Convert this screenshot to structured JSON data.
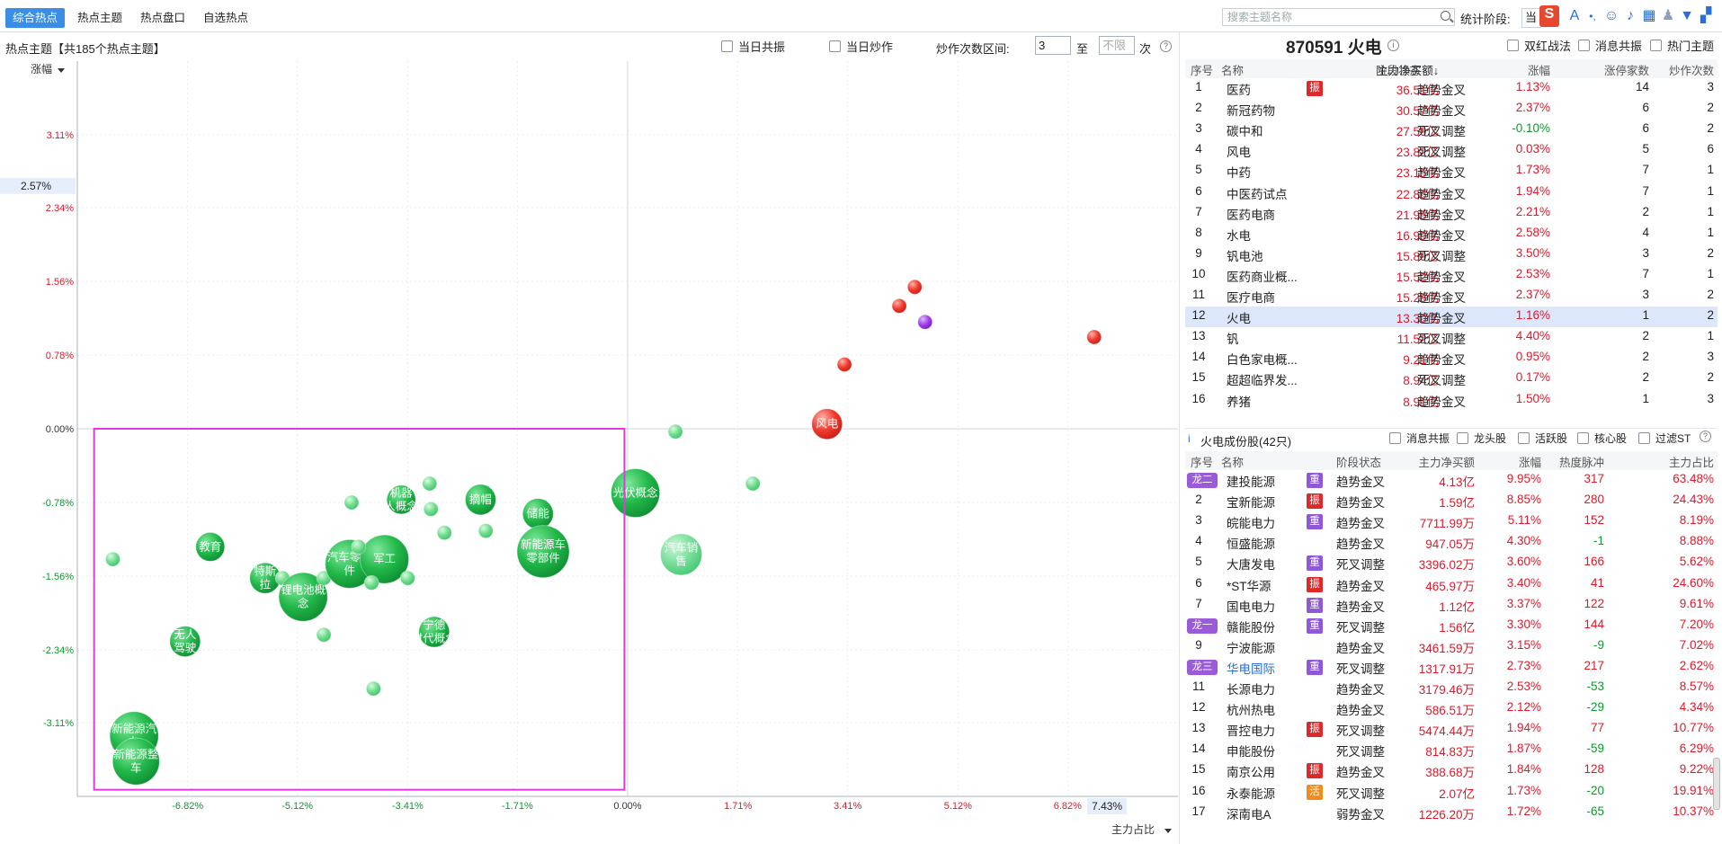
{
  "toolbar": {
    "tabs": [
      "综合热点",
      "热点主题",
      "热点盘口",
      "自选热点"
    ],
    "search_placeholder": "搜索主题名称",
    "stat_label": "统计阶段:",
    "stat_value": "当",
    "sogou": "S"
  },
  "left": {
    "header": "热点主题【共185个热点主题】",
    "cb_resonance": "当日共振",
    "cb_speculation": "当日炒作",
    "range_label": "炒作次数区间:",
    "range_from": "3",
    "range_to_label": "至",
    "range_to_placeholder": "不限",
    "range_unit": "次"
  },
  "chart_data": {
    "type": "scatter",
    "ylabel": "涨幅",
    "xlabel": "主力占比",
    "ylim": [
      -3.89,
      3.89
    ],
    "xlim": [
      -8.53,
      8.53
    ],
    "y_ticks": [
      "3.11%",
      "2.34%",
      "1.56%",
      "0.78%",
      "0.00%",
      "-0.78%",
      "-1.56%",
      "-2.34%",
      "-3.11%"
    ],
    "y_tick_values": [
      3.11,
      2.34,
      1.56,
      0.78,
      0,
      -0.78,
      -1.56,
      -2.34,
      -3.11
    ],
    "x_ticks": [
      "-6.82%",
      "-5.12%",
      "-3.41%",
      "-1.71%",
      "0.00%",
      "1.71%",
      "3.41%",
      "5.12%",
      "6.82%"
    ],
    "x_tick_values": [
      -6.82,
      -5.12,
      -3.41,
      -1.71,
      0,
      1.71,
      3.41,
      5.12,
      6.82
    ],
    "y_cursor": "2.57%",
    "x_cursor": "7.43%",
    "grid": true,
    "selection_color": "#e437e4",
    "selection": {
      "x": [
        -8.27,
        -0.05
      ],
      "y": [
        -3.82,
        0.0
      ]
    },
    "points": [
      {
        "x": -7.98,
        "y": -1.38,
        "r": 8,
        "label": "",
        "color": "light"
      },
      {
        "x": -6.47,
        "y": -1.25,
        "r": 16,
        "label": "教育",
        "color": "green"
      },
      {
        "x": -6.86,
        "y": -2.25,
        "r": 17,
        "label": "无人驾驶",
        "color": "green"
      },
      {
        "x": -7.65,
        "y": -3.25,
        "r": 27,
        "label": "新能源汽车",
        "color": "green"
      },
      {
        "x": -7.62,
        "y": -3.52,
        "r": 26,
        "label": "新能源整车",
        "color": "green"
      },
      {
        "x": -5.62,
        "y": -1.58,
        "r": 17,
        "label": "特斯拉",
        "color": "green"
      },
      {
        "x": -5.35,
        "y": -1.58,
        "r": 8,
        "label": "",
        "color": "light"
      },
      {
        "x": -5.03,
        "y": -1.78,
        "r": 27,
        "label": "锂电池概念",
        "color": "green"
      },
      {
        "x": -4.71,
        "y": -2.18,
        "r": 8,
        "label": "",
        "color": "light"
      },
      {
        "x": -4.71,
        "y": -1.58,
        "r": 8,
        "label": "",
        "color": "light"
      },
      {
        "x": -4.31,
        "y": -1.43,
        "r": 27,
        "label": "汽车零部件",
        "color": "green"
      },
      {
        "x": -3.77,
        "y": -1.38,
        "r": 27,
        "label": "军工",
        "color": "green"
      },
      {
        "x": -4.28,
        "y": -0.78,
        "r": 8,
        "label": "",
        "color": "light"
      },
      {
        "x": -4.17,
        "y": -1.25,
        "r": 8,
        "label": "",
        "color": "light"
      },
      {
        "x": -3.97,
        "y": -1.63,
        "r": 8,
        "label": "",
        "color": "light"
      },
      {
        "x": -3.94,
        "y": -2.75,
        "r": 8,
        "label": "",
        "color": "light"
      },
      {
        "x": -3.51,
        "y": -0.75,
        "r": 16,
        "label": "机器人概念",
        "color": "green"
      },
      {
        "x": -3.41,
        "y": -1.58,
        "r": 8,
        "label": "",
        "color": "light"
      },
      {
        "x": -3.07,
        "y": -0.58,
        "r": 8,
        "label": "",
        "color": "light"
      },
      {
        "x": -3.05,
        "y": -0.85,
        "r": 8,
        "label": "",
        "color": "light"
      },
      {
        "x": -2.84,
        "y": -1.1,
        "r": 8,
        "label": "",
        "color": "light"
      },
      {
        "x": -3.0,
        "y": -2.15,
        "r": 17,
        "label": "宁德时代概念",
        "color": "green"
      },
      {
        "x": -2.28,
        "y": -0.75,
        "r": 17,
        "label": "摘帽",
        "color": "green"
      },
      {
        "x": -2.2,
        "y": -1.08,
        "r": 8,
        "label": "",
        "color": "light"
      },
      {
        "x": -1.39,
        "y": -0.9,
        "r": 17,
        "label": "储能",
        "color": "green"
      },
      {
        "x": -1.31,
        "y": -1.3,
        "r": 29,
        "label": "新能源车零部件",
        "color": "green"
      },
      {
        "x": 0.12,
        "y": -0.68,
        "r": 27,
        "label": "光伏概念",
        "color": "green"
      },
      {
        "x": 0.74,
        "y": -0.03,
        "r": 8,
        "label": "",
        "color": "light"
      },
      {
        "x": 0.83,
        "y": -1.33,
        "r": 23,
        "label": "汽车销售",
        "color": "lightbig"
      },
      {
        "x": 1.94,
        "y": -0.58,
        "r": 8,
        "label": "",
        "color": "light"
      },
      {
        "x": 3.09,
        "y": 0.05,
        "r": 17,
        "label": "风电",
        "color": "red"
      },
      {
        "x": 3.36,
        "y": 0.68,
        "r": 8,
        "label": "",
        "color": "red"
      },
      {
        "x": 4.21,
        "y": 1.3,
        "r": 8,
        "label": "",
        "color": "red"
      },
      {
        "x": 4.45,
        "y": 1.5,
        "r": 8,
        "label": "",
        "color": "red"
      },
      {
        "x": 4.61,
        "y": 1.13,
        "r": 8,
        "label": "",
        "color": "purple"
      },
      {
        "x": 7.23,
        "y": 0.97,
        "r": 8,
        "label": "",
        "color": "red"
      }
    ]
  },
  "right_top": {
    "title": "870591 火电",
    "cb_double_red": "双红战法",
    "cb_news": "消息共振",
    "cb_hot": "热门主题",
    "columns": [
      "序号",
      "名称",
      "主力净买额",
      "阶段状态",
      "涨幅",
      "涨停家数",
      "炒作次数"
    ],
    "rows": [
      {
        "n": "1",
        "name": "医药",
        "badge": "振",
        "amt": "36.51亿",
        "status": "趋势金叉",
        "chg": "1.13%",
        "up": "14",
        "times": "3"
      },
      {
        "n": "2",
        "name": "新冠药物",
        "badge": "",
        "amt": "30.57亿",
        "status": "趋势金叉",
        "chg": "2.37%",
        "up": "6",
        "times": "2"
      },
      {
        "n": "3",
        "name": "碳中和",
        "badge": "",
        "amt": "27.59亿",
        "status": "死叉调整",
        "chg": "-0.10%",
        "up": "6",
        "times": "2"
      },
      {
        "n": "4",
        "name": "风电",
        "badge": "",
        "amt": "23.82亿",
        "status": "死叉调整",
        "chg": "0.03%",
        "up": "5",
        "times": "6"
      },
      {
        "n": "5",
        "name": "中药",
        "badge": "",
        "amt": "23.15亿",
        "status": "趋势金叉",
        "chg": "1.73%",
        "up": "7",
        "times": "1"
      },
      {
        "n": "6",
        "name": "中医药试点",
        "badge": "",
        "amt": "22.86亿",
        "status": "趋势金叉",
        "chg": "1.94%",
        "up": "7",
        "times": "1"
      },
      {
        "n": "7",
        "name": "医药电商",
        "badge": "",
        "amt": "21.95亿",
        "status": "趋势金叉",
        "chg": "2.21%",
        "up": "2",
        "times": "1"
      },
      {
        "n": "8",
        "name": "水电",
        "badge": "",
        "amt": "16.99亿",
        "status": "趋势金叉",
        "chg": "2.58%",
        "up": "4",
        "times": "1"
      },
      {
        "n": "9",
        "name": "钒电池",
        "badge": "",
        "amt": "15.89亿",
        "status": "死叉调整",
        "chg": "3.50%",
        "up": "3",
        "times": "2"
      },
      {
        "n": "10",
        "name": "医药商业概...",
        "badge": "",
        "amt": "15.52亿",
        "status": "趋势金叉",
        "chg": "2.53%",
        "up": "7",
        "times": "1"
      },
      {
        "n": "11",
        "name": "医疗电商",
        "badge": "",
        "amt": "15.28亿",
        "status": "趋势金叉",
        "chg": "2.37%",
        "up": "3",
        "times": "2"
      },
      {
        "n": "12",
        "name": "火电",
        "badge": "",
        "amt": "13.30亿",
        "status": "趋势金叉",
        "chg": "1.16%",
        "up": "1",
        "times": "2",
        "sel": true
      },
      {
        "n": "13",
        "name": "钒",
        "badge": "",
        "amt": "11.52亿",
        "status": "死叉调整",
        "chg": "4.40%",
        "up": "2",
        "times": "1"
      },
      {
        "n": "14",
        "name": "白色家电概...",
        "badge": "",
        "amt": "9.21亿",
        "status": "趋势金叉",
        "chg": "0.95%",
        "up": "2",
        "times": "3"
      },
      {
        "n": "15",
        "name": "超超临界发...",
        "badge": "",
        "amt": "8.94亿",
        "status": "死叉调整",
        "chg": "0.17%",
        "up": "2",
        "times": "2"
      },
      {
        "n": "16",
        "name": "养猪",
        "badge": "",
        "amt": "8.91亿",
        "status": "趋势金叉",
        "chg": "1.50%",
        "up": "1",
        "times": "3"
      }
    ]
  },
  "right_bottom": {
    "title": "火电成份股(42只)",
    "cb_news": "消息共振",
    "cb_leader": "龙头股",
    "cb_active": "活跃股",
    "cb_core": "核心股",
    "cb_st": "过滤ST",
    "columns": [
      "序号",
      "名称",
      "阶段状态",
      "主力净买额",
      "涨幅",
      "热度脉冲",
      "主力占比"
    ],
    "rows": [
      {
        "n": "龙二",
        "name": "建投能源",
        "tag": "重",
        "status": "趋势金叉",
        "amt": "4.13亿",
        "chg": "9.95%",
        "heat": "317",
        "ratio": "63.48%"
      },
      {
        "n": "2",
        "name": "宝新能源",
        "tag": "振",
        "status": "趋势金叉",
        "amt": "1.59亿",
        "chg": "8.85%",
        "heat": "280",
        "ratio": "24.43%"
      },
      {
        "n": "3",
        "name": "皖能电力",
        "tag": "重",
        "status": "趋势金叉",
        "amt": "7711.99万",
        "chg": "5.11%",
        "heat": "152",
        "ratio": "8.19%"
      },
      {
        "n": "4",
        "name": "恒盛能源",
        "tag": "",
        "status": "趋势金叉",
        "amt": "947.05万",
        "chg": "4.30%",
        "heat": "-1",
        "ratio": "8.88%"
      },
      {
        "n": "5",
        "name": "大唐发电",
        "tag": "重",
        "status": "死叉调整",
        "amt": "3396.02万",
        "chg": "3.60%",
        "heat": "166",
        "ratio": "5.62%"
      },
      {
        "n": "6",
        "name": "*ST华源",
        "tag": "振",
        "status": "趋势金叉",
        "amt": "465.97万",
        "chg": "3.40%",
        "heat": "41",
        "ratio": "24.60%"
      },
      {
        "n": "7",
        "name": "国电电力",
        "tag": "重",
        "status": "趋势金叉",
        "amt": "1.12亿",
        "chg": "3.37%",
        "heat": "122",
        "ratio": "9.61%"
      },
      {
        "n": "龙一",
        "name": "赣能股份",
        "tag": "重",
        "status": "死叉调整",
        "amt": "1.56亿",
        "chg": "3.30%",
        "heat": "144",
        "ratio": "7.20%"
      },
      {
        "n": "9",
        "name": "宁波能源",
        "tag": "",
        "status": "趋势金叉",
        "amt": "3461.59万",
        "chg": "3.15%",
        "heat": "-9",
        "ratio": "7.02%"
      },
      {
        "n": "龙三",
        "name": "华电国际",
        "tag": "重",
        "status": "死叉调整",
        "amt": "1317.91万",
        "chg": "2.73%",
        "heat": "217",
        "ratio": "2.62%",
        "link": true
      },
      {
        "n": "11",
        "name": "长源电力",
        "tag": "",
        "status": "趋势金叉",
        "amt": "3179.46万",
        "chg": "2.53%",
        "heat": "-53",
        "ratio": "8.57%"
      },
      {
        "n": "12",
        "name": "杭州热电",
        "tag": "",
        "status": "趋势金叉",
        "amt": "586.51万",
        "chg": "2.12%",
        "heat": "-29",
        "ratio": "4.34%"
      },
      {
        "n": "13",
        "name": "晋控电力",
        "tag": "振",
        "status": "死叉调整",
        "amt": "5474.44万",
        "chg": "1.94%",
        "heat": "77",
        "ratio": "10.77%"
      },
      {
        "n": "14",
        "name": "申能股份",
        "tag": "",
        "status": "死叉调整",
        "amt": "814.83万",
        "chg": "1.87%",
        "heat": "-59",
        "ratio": "6.29%"
      },
      {
        "n": "15",
        "name": "南京公用",
        "tag": "振",
        "status": "趋势金叉",
        "amt": "388.68万",
        "chg": "1.84%",
        "heat": "128",
        "ratio": "9.22%"
      },
      {
        "n": "16",
        "name": "永泰能源",
        "tag": "活",
        "status": "死叉调整",
        "amt": "2.07亿",
        "chg": "1.73%",
        "heat": "-20",
        "ratio": "19.91%"
      },
      {
        "n": "17",
        "name": "深南电A",
        "tag": "",
        "status": "弱势金叉",
        "amt": "1226.20万",
        "chg": "1.72%",
        "heat": "-65",
        "ratio": "10.37%"
      }
    ]
  }
}
